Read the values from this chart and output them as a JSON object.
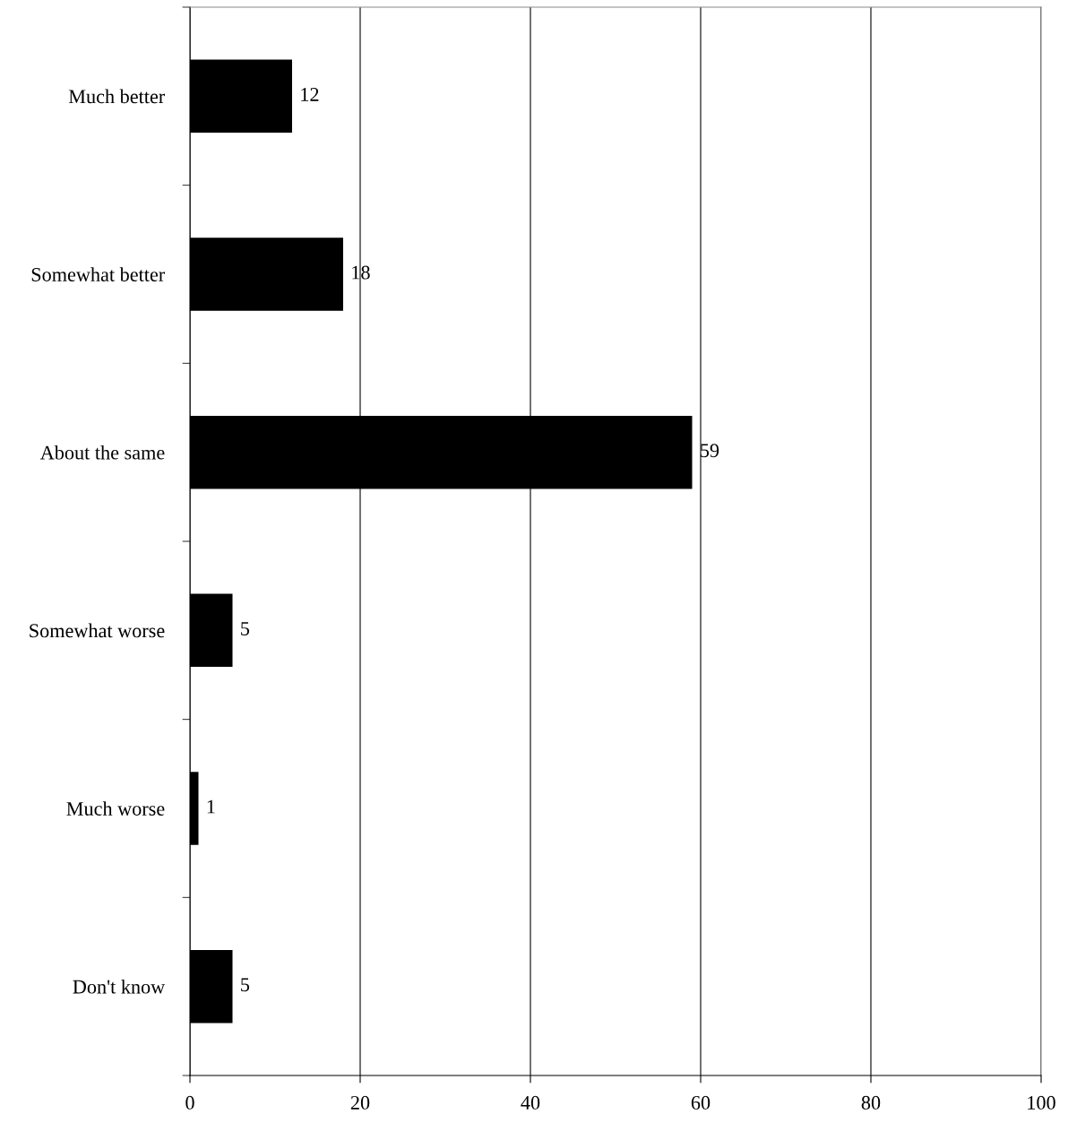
{
  "chart_data": {
    "type": "bar",
    "orientation": "horizontal",
    "categories": [
      "Much better",
      "Somewhat better",
      "About the same",
      "Somewhat worse",
      "Much worse",
      "Don't know"
    ],
    "values": [
      12,
      18,
      59,
      5,
      1,
      5
    ],
    "color": "#000000",
    "xlim": [
      0,
      100
    ],
    "xticks": [
      0,
      20,
      40,
      60,
      80,
      100
    ],
    "grid": "x",
    "data_labels": true
  }
}
